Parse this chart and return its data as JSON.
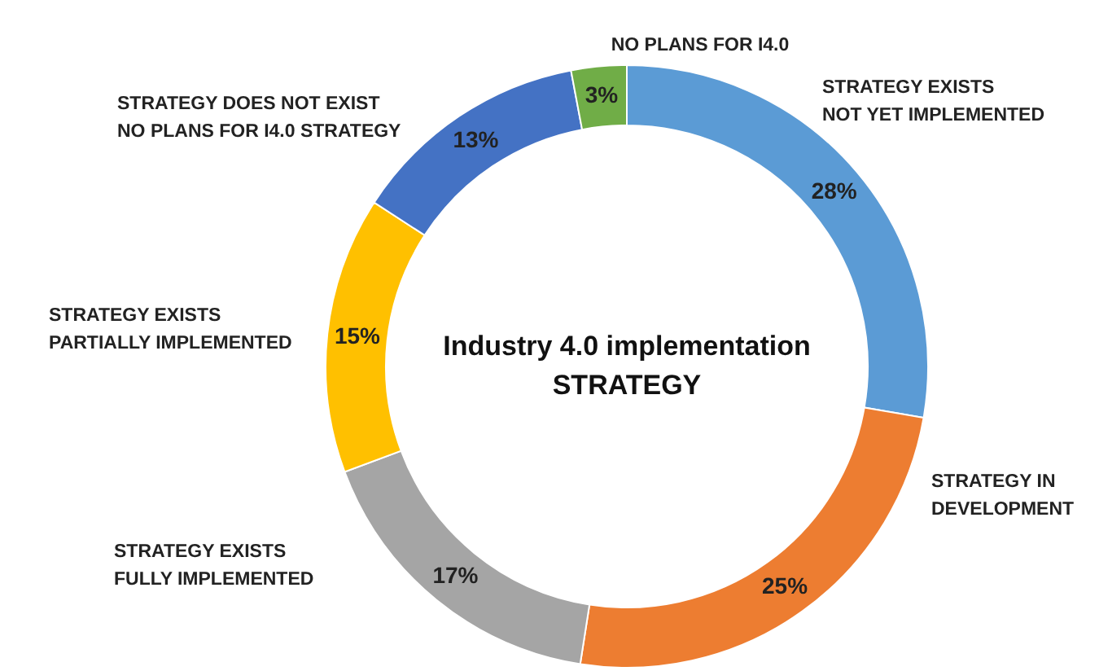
{
  "chart_data": {
    "type": "donut",
    "title": "Industry 4.0 implementation\nSTRATEGY",
    "categories": [
      "STRATEGY EXISTS\nNOT YET IMPLEMENTED",
      "STRATEGY IN\nDEVELOPMENT",
      "STRATEGY EXISTS\nFULLY IMPLEMENTED",
      "STRATEGY EXISTS\nPARTIALLY IMPLEMENTED",
      "STRATEGY DOES NOT EXIST\nNO PLANS FOR I4.0 STRATEGY",
      "NO PLANS FOR I4.0"
    ],
    "values": [
      28,
      25,
      17,
      15,
      13,
      3
    ],
    "colors": [
      "#5b9bd5",
      "#ed7d31",
      "#a5a5a5",
      "#ffc000",
      "#4472c4",
      "#70ad47"
    ],
    "value_labels": [
      "28%",
      "25%",
      "17%",
      "15%",
      "13%",
      "3%"
    ]
  }
}
